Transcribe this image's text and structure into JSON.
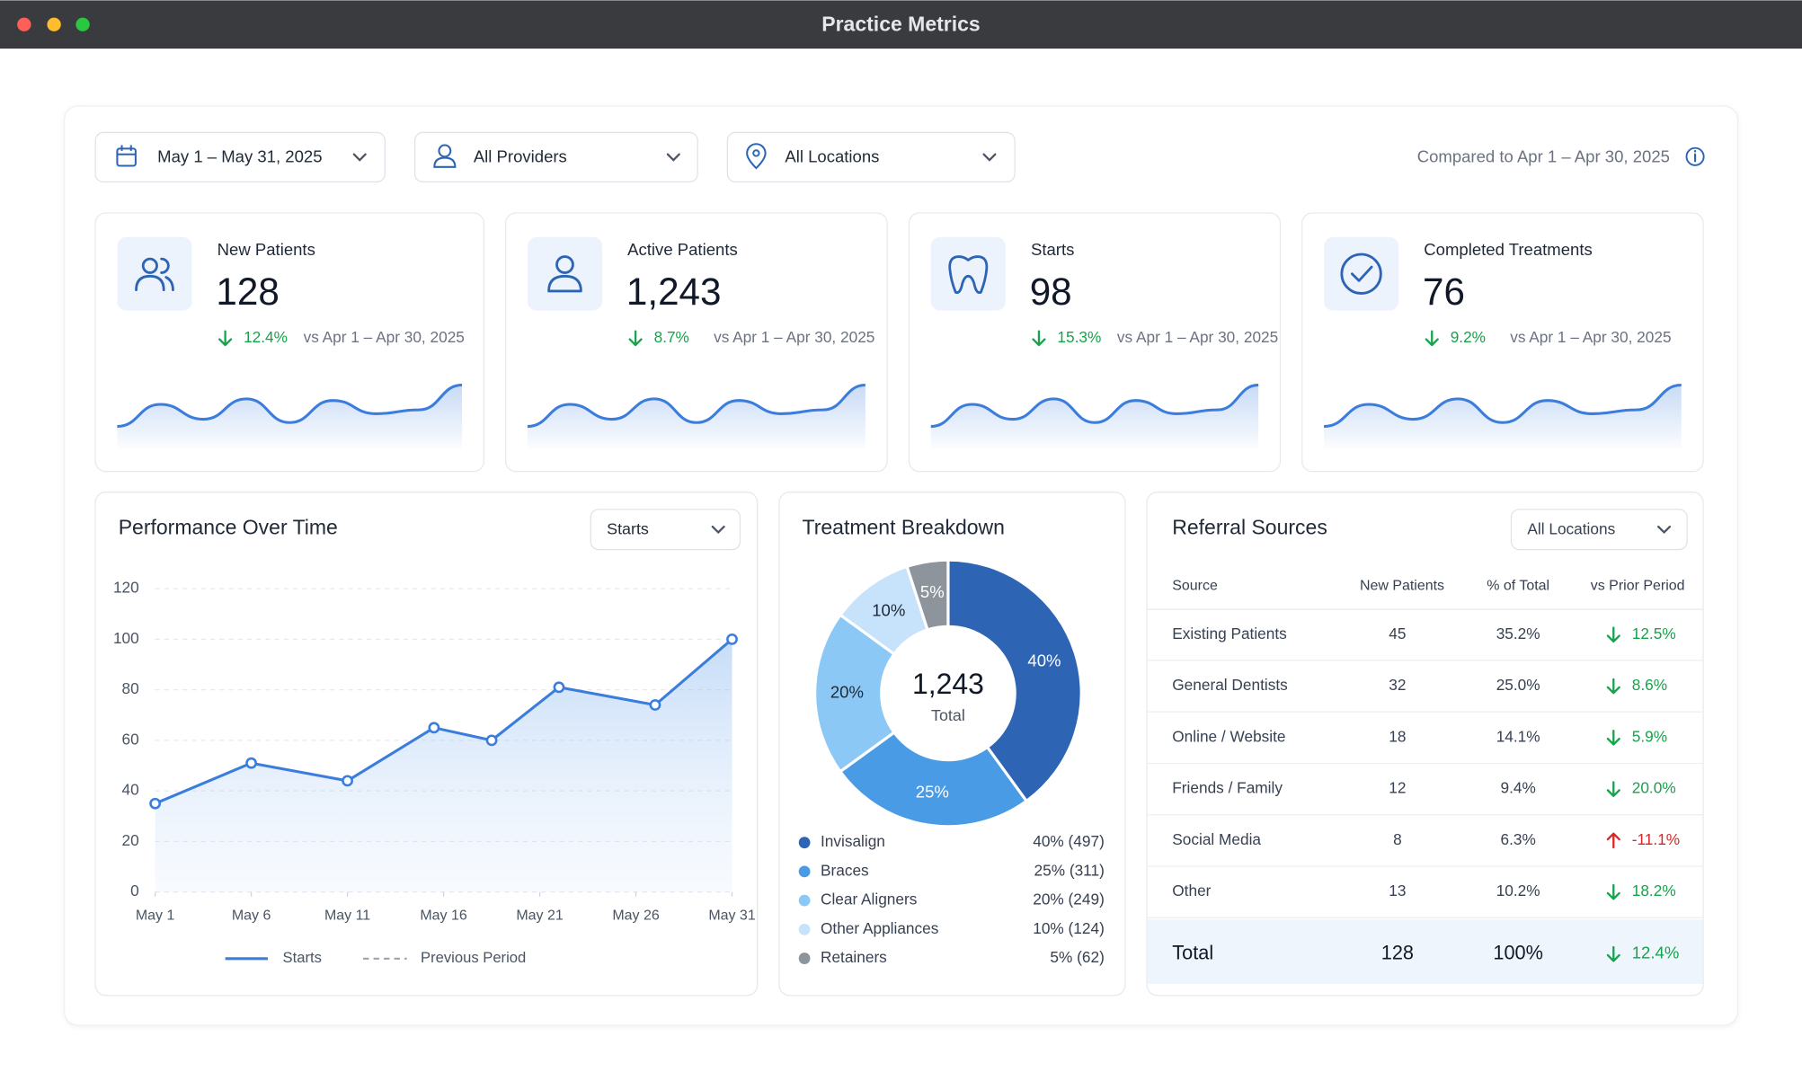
{
  "window_title": "Practice Metrics",
  "filters": {
    "date": "May 1 – May 31, 2025",
    "providers": "All Providers",
    "locations": "All Locations",
    "comparison": "Compared to Apr 1 – Apr 30, 2025"
  },
  "kpis": [
    {
      "label": "New Patients",
      "value": "128",
      "change": "12.4%",
      "compare": "vs Apr 1 – Apr 30, 2025"
    },
    {
      "label": "Active Patients",
      "value": "1,243",
      "change": "8.7%",
      "compare": "vs Apr 1 – Apr 30, 2025"
    },
    {
      "label": "Starts",
      "value": "98",
      "change": "15.3%",
      "compare": "vs Apr 1 – Apr 30, 2025"
    },
    {
      "label": "Completed Treatments",
      "value": "76",
      "change": "9.2%",
      "compare": "vs Apr 1 – Apr 30, 2025"
    }
  ],
  "chart_data": [
    {
      "type": "line",
      "title": "Performance Over Time",
      "selector": "Starts",
      "x": [
        1,
        6,
        11,
        15.5,
        18.5,
        22,
        27,
        31
      ],
      "xlim": [
        1,
        31
      ],
      "xticks": [
        {
          "value": 1,
          "label": "May 1"
        },
        {
          "value": 6,
          "label": "May 6"
        },
        {
          "value": 11,
          "label": "May 11"
        },
        {
          "value": 16,
          "label": "May 16"
        },
        {
          "value": 21,
          "label": "May 21"
        },
        {
          "value": 26,
          "label": "May 26"
        },
        {
          "value": 31,
          "label": "May 31"
        }
      ],
      "ylim": [
        0,
        120
      ],
      "yticks": [
        0,
        20,
        40,
        60,
        80,
        100,
        120
      ],
      "grid": true,
      "series": [
        {
          "name": "Starts",
          "color": "#3b7ddd",
          "values": [
            35,
            51,
            44,
            65,
            60,
            81,
            74,
            100
          ]
        }
      ],
      "comparison_legend": "Previous Period"
    },
    {
      "type": "donut",
      "title": "Treatment Breakdown",
      "categories": [
        "Invisalign",
        "Braces",
        "Clear Aligners",
        "Other Appliances",
        "Retainers"
      ],
      "values": [
        40,
        25,
        20,
        10,
        5
      ],
      "value_labels": [
        "40%",
        "25%",
        "20%",
        "10%",
        "5%"
      ],
      "legend_labels": [
        "40% (497)",
        "25% (311)",
        "20% (249)",
        "10% (124)",
        "5% (62)"
      ],
      "colors": [
        "#2d64b3",
        "#4a9be6",
        "#8cc8f5",
        "#c6e3fb",
        "#8e949c"
      ],
      "center_value": "1,243",
      "center_label": "Total"
    }
  ],
  "referrals": {
    "title": "Referral Sources",
    "selector": "All Locations",
    "columns": [
      "Source",
      "New Patients",
      "% of Total",
      "vs Prior Period"
    ],
    "rows": [
      [
        "Existing Patients",
        "45",
        "35.2%",
        "12.5%"
      ],
      [
        "General Dentists",
        "32",
        "25.0%",
        "8.6%"
      ],
      [
        "Online / Website",
        "18",
        "14.1%",
        "5.9%"
      ],
      [
        "Friends / Family",
        "12",
        "9.4%",
        "20.0%"
      ],
      [
        "Social Media",
        "8",
        "6.3%",
        "-11.1%"
      ],
      [
        "Other",
        "13",
        "10.2%",
        "18.2%"
      ]
    ],
    "total": [
      "Total",
      "128",
      "100%",
      "12.4%"
    ]
  }
}
